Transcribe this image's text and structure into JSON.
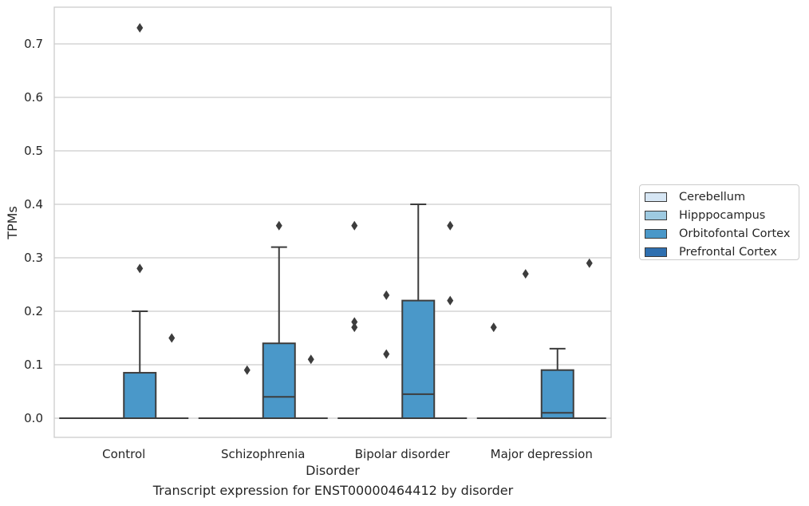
{
  "chart_data": {
    "type": "boxplot",
    "xlabel": "Disorder",
    "ylabel": "TPMs",
    "caption": "Transcript expression for ENST00000464412 by disorder",
    "ylim": [
      -0.035,
      0.77
    ],
    "yticks": [
      0.0,
      0.1,
      0.2,
      0.3,
      0.4,
      0.5,
      0.6,
      0.7
    ],
    "ytick_labels": [
      "0.0",
      "0.1",
      "0.2",
      "0.3",
      "0.4",
      "0.5",
      "0.6",
      "0.7"
    ],
    "categories": [
      "Control",
      "Schizophrenia",
      "Bipolar disorder",
      "Major depression"
    ],
    "grid": "horizontal",
    "legend_position": "right",
    "series": [
      {
        "name": "Cerebellum",
        "color": "#d0e1f2",
        "boxes": [
          {
            "q1": 0,
            "median": 0,
            "q3": 0,
            "whisker_low": 0,
            "whisker_high": 0,
            "outliers": []
          },
          {
            "q1": 0,
            "median": 0,
            "q3": 0,
            "whisker_low": 0,
            "whisker_high": 0,
            "outliers": []
          },
          {
            "q1": 0,
            "median": 0,
            "q3": 0,
            "whisker_low": 0,
            "whisker_high": 0,
            "outliers": [
              0.36,
              0.18,
              0.17
            ]
          },
          {
            "q1": 0,
            "median": 0,
            "q3": 0,
            "whisker_low": 0,
            "whisker_high": 0,
            "outliers": [
              0.17
            ]
          }
        ]
      },
      {
        "name": "Hipppocampus",
        "color": "#94c4df",
        "boxes": [
          {
            "q1": 0,
            "median": 0,
            "q3": 0,
            "whisker_low": 0,
            "whisker_high": 0,
            "outliers": []
          },
          {
            "q1": 0,
            "median": 0,
            "q3": 0,
            "whisker_low": 0,
            "whisker_high": 0,
            "outliers": [
              0.09
            ]
          },
          {
            "q1": 0,
            "median": 0,
            "q3": 0,
            "whisker_low": 0,
            "whisker_high": 0,
            "outliers": [
              0.23,
              0.12
            ]
          },
          {
            "q1": 0,
            "median": 0,
            "q3": 0,
            "whisker_low": 0,
            "whisker_high": 0,
            "outliers": [
              0.27
            ]
          }
        ]
      },
      {
        "name": "Orbitofontal Cortex",
        "color": "#4a98c9",
        "boxes": [
          {
            "q1": 0,
            "median": 0,
            "q3": 0.085,
            "whisker_low": 0,
            "whisker_high": 0.2,
            "outliers": [
              0.73,
              0.28
            ]
          },
          {
            "q1": 0,
            "median": 0.04,
            "q3": 0.14,
            "whisker_low": 0,
            "whisker_high": 0.32,
            "outliers": [
              0.36
            ]
          },
          {
            "q1": 0,
            "median": 0.045,
            "q3": 0.22,
            "whisker_low": 0,
            "whisker_high": 0.4,
            "outliers": []
          },
          {
            "q1": 0,
            "median": 0.01,
            "q3": 0.09,
            "whisker_low": 0,
            "whisker_high": 0.13,
            "outliers": []
          }
        ]
      },
      {
        "name": "Prefrontal Cortex",
        "color": "#2e7ebc",
        "boxes": [
          {
            "q1": 0,
            "median": 0,
            "q3": 0,
            "whisker_low": 0,
            "whisker_high": 0,
            "outliers": [
              0.15
            ]
          },
          {
            "q1": 0,
            "median": 0,
            "q3": 0,
            "whisker_low": 0,
            "whisker_high": 0,
            "outliers": [
              0.11
            ]
          },
          {
            "q1": 0,
            "median": 0,
            "q3": 0,
            "whisker_low": 0,
            "whisker_high": 0,
            "outliers": [
              0.36,
              0.22
            ]
          },
          {
            "q1": 0,
            "median": 0,
            "q3": 0,
            "whisker_low": 0,
            "whisker_high": 0,
            "outliers": [
              0.29
            ]
          }
        ]
      }
    ],
    "legend_colors": [
      "#d6e6f4",
      "#9ecae1",
      "#4a98c9",
      "#2e6fb0"
    ]
  }
}
